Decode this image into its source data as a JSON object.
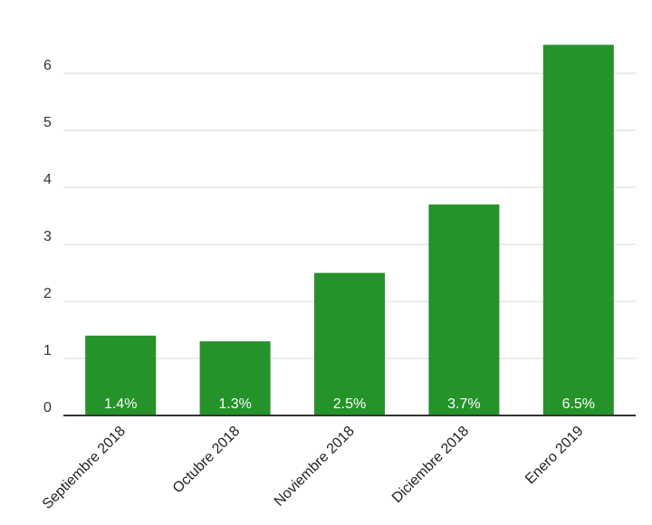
{
  "chart_data": {
    "type": "bar",
    "categories": [
      "Septiembre 2018",
      "Octubre 2018",
      "Noviembre 2018",
      "Diciembre 2018",
      "Enero 2019"
    ],
    "values": [
      1.4,
      1.3,
      2.5,
      3.7,
      6.5
    ],
    "data_labels": [
      "1.4%",
      "1.3%",
      "2.5%",
      "3.7%",
      "6.5%"
    ],
    "yticks": [
      0,
      1,
      2,
      3,
      4,
      5,
      6
    ],
    "ylim": [
      0,
      6.5
    ],
    "grid": true,
    "legend": "none",
    "bar_color": "#25922a"
  }
}
